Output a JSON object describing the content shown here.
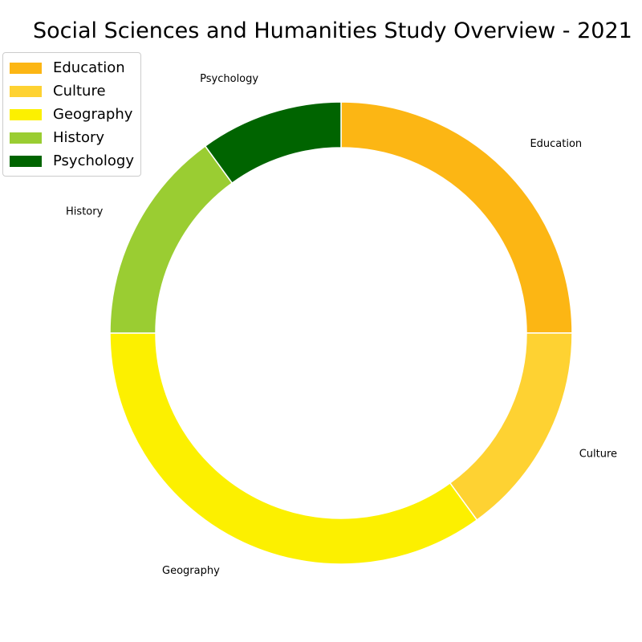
{
  "chart_data": {
    "type": "pie",
    "variant": "donut",
    "title": "Social Sciences and Humanities Study Overview - 2021",
    "categories": [
      "Education",
      "Culture",
      "Geography",
      "History",
      "Psychology"
    ],
    "values": [
      25,
      15,
      35,
      15,
      10
    ],
    "colors": [
      "#fcb614",
      "#fed232",
      "#fcf000",
      "#9acd32",
      "#006400"
    ],
    "start_angle_deg": 90,
    "direction": "clockwise",
    "legend_position": "top-left"
  }
}
